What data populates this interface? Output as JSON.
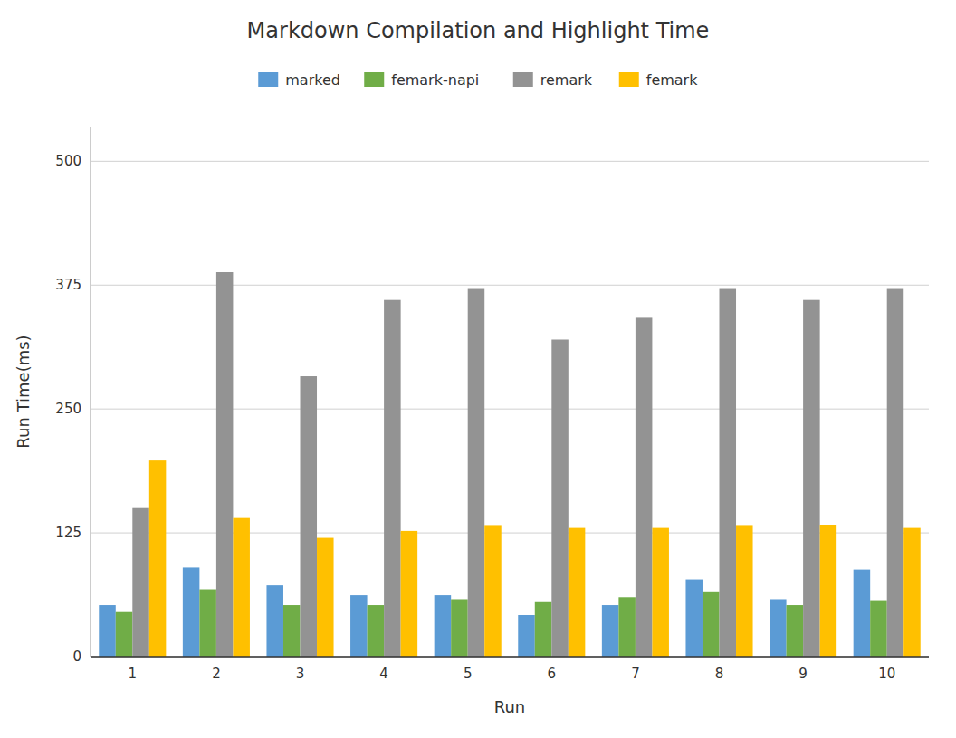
{
  "chart_data": {
    "type": "bar",
    "title": "Markdown Compilation and Highlight Time",
    "xlabel": "Run",
    "ylabel": "Run Time(ms)",
    "categories": [
      "1",
      "2",
      "3",
      "4",
      "5",
      "6",
      "7",
      "8",
      "9",
      "10"
    ],
    "series": [
      {
        "name": "marked",
        "color": "#5B9BD5",
        "values": [
          52,
          90,
          72,
          62,
          62,
          42,
          52,
          78,
          58,
          88
        ]
      },
      {
        "name": "femark-napi",
        "color": "#70AD47",
        "values": [
          45,
          68,
          52,
          52,
          58,
          55,
          60,
          65,
          52,
          57
        ]
      },
      {
        "name": "remark",
        "color": "#939393",
        "values": [
          150,
          388,
          283,
          360,
          372,
          320,
          342,
          372,
          360,
          372
        ]
      },
      {
        "name": "femark",
        "color": "#FFC000",
        "values": [
          198,
          140,
          120,
          127,
          132,
          130,
          130,
          132,
          133,
          130
        ]
      }
    ],
    "ylim": [
      0,
      535
    ],
    "yticks": [
      0,
      125,
      250,
      375,
      500
    ],
    "grid": true,
    "legend": "top"
  }
}
